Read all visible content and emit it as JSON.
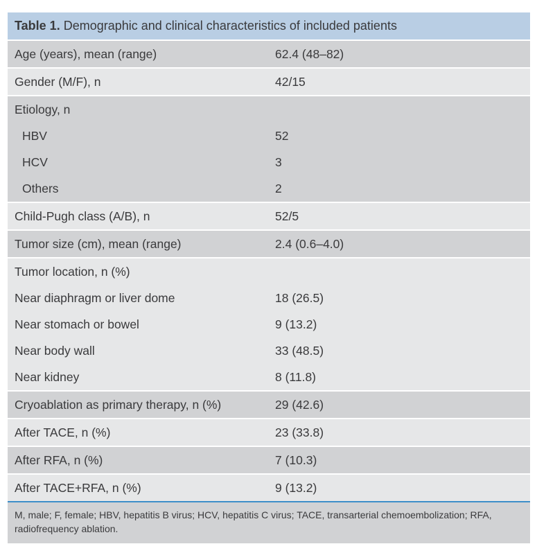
{
  "colors": {
    "header_bg": "#b9cee4",
    "row_dark": "#d1d2d4",
    "row_light": "#e6e7e8",
    "rule_blue": "#3d8ec9",
    "text": "#3a3a3c"
  },
  "table": {
    "title_bold": "Table 1.",
    "title_rest": " Demographic and clinical characteristics of included patients",
    "groups": [
      {
        "shade": "dark",
        "lines": [
          {
            "label": "Age (years), mean (range)",
            "value": "62.4 (48–82)",
            "indent": false
          }
        ]
      },
      {
        "shade": "light",
        "lines": [
          {
            "label": "Gender (M/F), n",
            "value": "42/15",
            "indent": false
          }
        ]
      },
      {
        "shade": "dark",
        "lines": [
          {
            "label": "Etiology, n",
            "value": "",
            "indent": false
          },
          {
            "label": "HBV",
            "value": "52",
            "indent": true
          },
          {
            "label": "HCV",
            "value": "3",
            "indent": true
          },
          {
            "label": "Others",
            "value": "2",
            "indent": true
          }
        ]
      },
      {
        "shade": "light",
        "lines": [
          {
            "label": "Child-Pugh class (A/B), n",
            "value": "52/5",
            "indent": false
          }
        ]
      },
      {
        "shade": "dark",
        "lines": [
          {
            "label": "Tumor size (cm), mean (range)",
            "value": "2.4 (0.6–4.0)",
            "indent": false
          }
        ]
      },
      {
        "shade": "light",
        "lines": [
          {
            "label": "Tumor location, n (%)",
            "value": "",
            "indent": false
          },
          {
            "label": "Near diaphragm or liver dome",
            "value": "18 (26.5)",
            "indent": false
          },
          {
            "label": "Near stomach or bowel",
            "value": "9 (13.2)",
            "indent": false
          },
          {
            "label": "Near body wall",
            "value": "33 (48.5)",
            "indent": false
          },
          {
            "label": "Near kidney",
            "value": "8 (11.8)",
            "indent": false
          }
        ]
      },
      {
        "shade": "dark",
        "lines": [
          {
            "label": "Cryoablation as primary therapy, n (%)",
            "value": "29 (42.6)",
            "indent": false
          }
        ]
      },
      {
        "shade": "light",
        "lines": [
          {
            "label": "After TACE, n (%)",
            "value": "23 (33.8)",
            "indent": false
          }
        ]
      },
      {
        "shade": "dark",
        "lines": [
          {
            "label": "After RFA, n (%)",
            "value": "7 (10.3)",
            "indent": false
          }
        ]
      },
      {
        "shade": "light",
        "lines": [
          {
            "label": "After TACE+RFA, n (%)",
            "value": "9 (13.2)",
            "indent": false
          }
        ]
      }
    ],
    "footnote": "M, male; F, female; HBV, hepatitis B virus; HCV, hepatitis C virus; TACE, transarterial chemoembolization; RFA, radiofrequency ablation."
  }
}
